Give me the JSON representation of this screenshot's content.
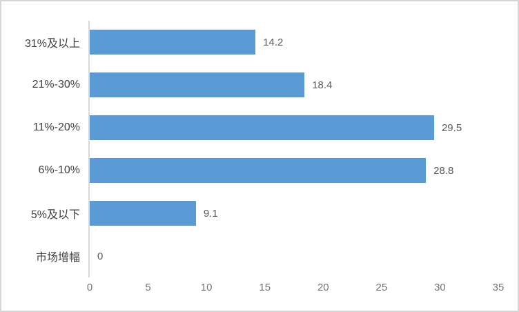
{
  "chart_data": {
    "type": "bar",
    "orientation": "horizontal",
    "title": "",
    "categories": [
      "31%及以上",
      "21%-30%",
      "11%-20%",
      "6%-10%",
      "5%及以下",
      "市场增幅"
    ],
    "values": [
      14.2,
      18.4,
      29.5,
      28.8,
      9.1,
      0
    ],
    "value_labels": [
      "14.2",
      "18.4",
      "29.5",
      "28.8",
      "9.1",
      "0"
    ],
    "xlim": [
      0,
      35
    ],
    "x_ticks": [
      0,
      5,
      10,
      15,
      20,
      25,
      30,
      35
    ],
    "x_tick_labels": [
      "0",
      "5",
      "10",
      "15",
      "20",
      "25",
      "30",
      "35"
    ],
    "grid": false,
    "legend": false,
    "bar_color": "#5b9bd5",
    "axis_line_color": "#d9d9d9",
    "category_label_color": "#404040",
    "value_label_color": "#595959",
    "tick_label_color": "#737373",
    "frame_border_color": "#d6d6d6"
  }
}
